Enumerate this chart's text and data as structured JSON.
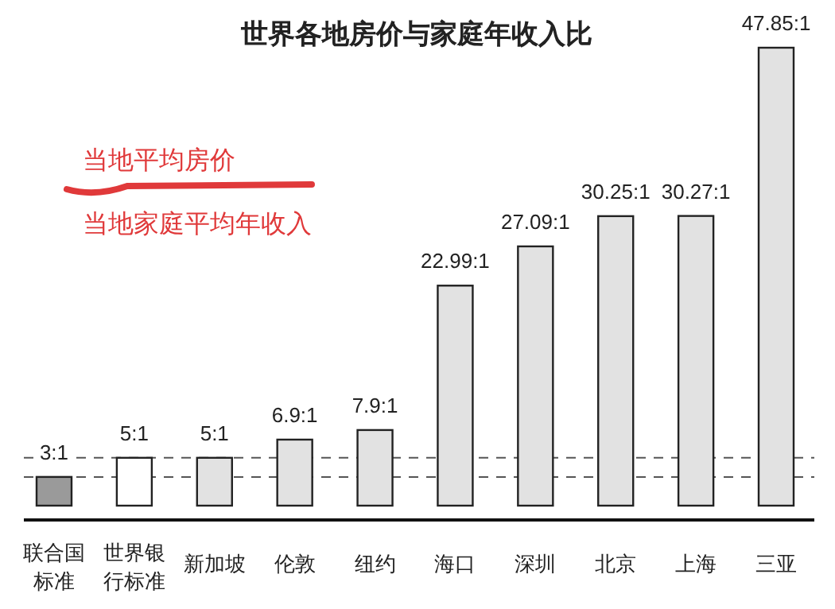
{
  "chart_data": {
    "type": "bar",
    "title": "世界各地房价与家庭年收入比",
    "categories": [
      "联合国标准",
      "世界银行标准",
      "新加坡",
      "伦敦",
      "纽约",
      "海口",
      "深圳",
      "北京",
      "上海",
      "三亚"
    ],
    "values": [
      3,
      5,
      5,
      6.9,
      7.9,
      22.99,
      27.09,
      30.25,
      30.27,
      47.85
    ],
    "value_labels": [
      "3:1",
      "5:1",
      "5:1",
      "6.9:1",
      "7.9:1",
      "22.99:1",
      "27.09:1",
      "30.25:1",
      "30.27:1",
      "47.85:1"
    ],
    "colors": [
      "#9a9a9a",
      "#ffffff",
      "#e2e2e2",
      "#e2e2e2",
      "#e2e2e2",
      "#e2e2e2",
      "#e2e2e2",
      "#e2e2e2",
      "#e2e2e2",
      "#e2e2e2"
    ],
    "ref_lines": [
      {
        "axis": "y",
        "value": 3,
        "line_style": "dashed",
        "color": "#555555"
      },
      {
        "axis": "y",
        "value": 5,
        "line_style": "dashed",
        "color": "#555555"
      }
    ],
    "annotations": [
      "当地平均房价",
      "当地家庭平均年收入"
    ],
    "data_labels": true
  }
}
